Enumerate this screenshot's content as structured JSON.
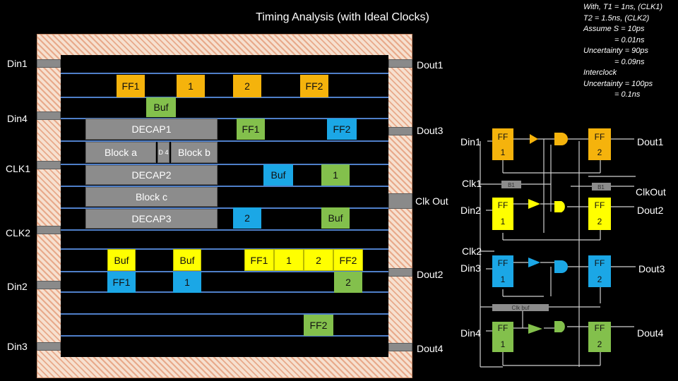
{
  "title": "Timing Analysis (with Ideal Clocks)",
  "notes": {
    "l1": "With, T1 = 1ns, (CLK1)",
    "l2": "T2 = 1.5ns, (CLK2)",
    "l3": "Assume S = 10ps",
    "l4": "= 0.01ns",
    "l5": "Uncertainty = 90ps",
    "l6": "= 0.09ns",
    "l7": "Interclock",
    "l8": "Uncertainty = 100ps",
    "l9": "= 0.1ns"
  },
  "pins_left": [
    "Din1",
    "Din4",
    "CLK1",
    "CLK2",
    "Din2",
    "Din3"
  ],
  "pins_right": [
    "Dout1",
    "Dout3",
    "Clk Out",
    "Dout2",
    "Dout4"
  ],
  "cells": {
    "or_ff1": "FF1",
    "or_1": "1",
    "or_2": "2",
    "or_ff2": "FF2",
    "or_buf": "Buf",
    "decap1": "DECAP1",
    "block_a": "Block a",
    "block_d4": "D 4",
    "block_b": "Block b",
    "decap2": "DECAP2",
    "block_c": "Block c",
    "decap3": "DECAP3",
    "gr_ff1": "FF1",
    "bl_ff2": "FF2",
    "bl_buf": "Buf",
    "gr_1": "1",
    "bl_2": "2",
    "gr_buf": "Buf",
    "ye_buf1": "Buf",
    "ye_buf2": "Buf",
    "ye_ff1": "FF1",
    "ye_1": "1",
    "ye_2": "2",
    "ye_ff2": "FF2",
    "bl_ff1": "FF1",
    "bl_1": "1",
    "gr_2": "2",
    "gr_ff2": "FF2"
  },
  "schematic": {
    "in_labels": [
      "Din1",
      "Clk1",
      "Din2",
      "Clk2",
      "Din3",
      "Din4"
    ],
    "out_labels": [
      "Dout1",
      "ClkOut",
      "Dout2",
      "Dout3",
      "Dout4"
    ],
    "ff_text": "FF",
    "ff_first": "1",
    "ff_second": "2",
    "b1_text": "B1",
    "clkbuf_text": "Clk buf"
  },
  "colors": {
    "orange": "#f5b30c",
    "green": "#83c04c",
    "blue": "#1ba7e6",
    "yellow": "#ffff00",
    "gray": "#8c8c8c",
    "rail": "#4f7fc9"
  }
}
